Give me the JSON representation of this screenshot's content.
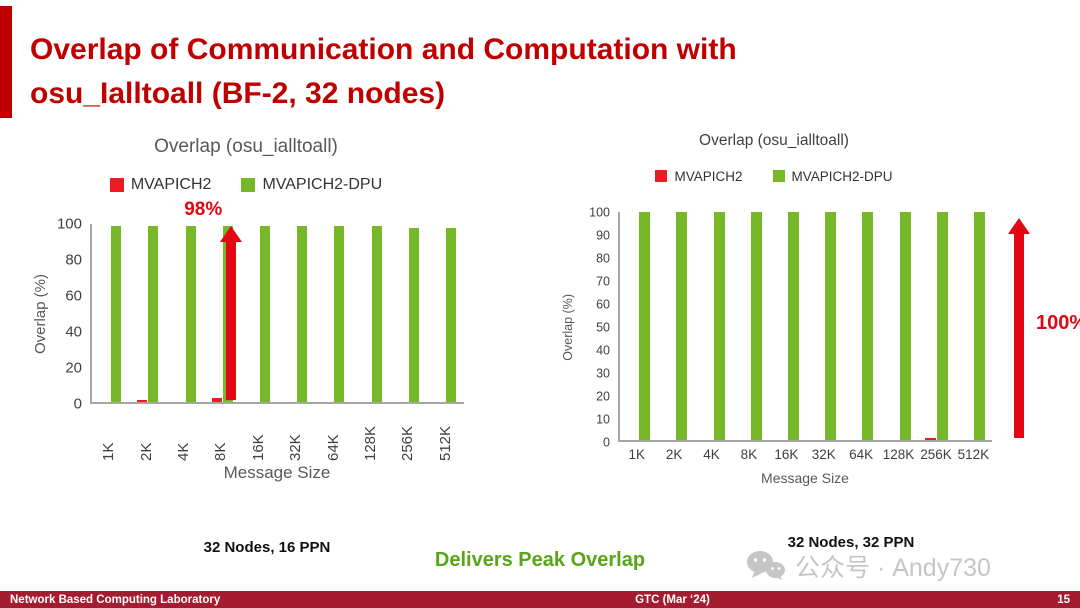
{
  "slide": {
    "title_line1": "Overlap of Communication and Computation with",
    "title_line2": "osu_Ialltoall (BF-2, 32 nodes)",
    "center_note": "Delivers Peak Overlap",
    "watermark": "公众号 · Andy730"
  },
  "footer": {
    "left": "Network Based Computing Laboratory",
    "center": "GTC (Mar ‘24)",
    "page": "15"
  },
  "colors": {
    "title_red": "#C00000",
    "footer_red": "#A51C30",
    "bar_green": "#76B82A",
    "bar_red": "#ED1C24",
    "arrow_red": "#E30613",
    "note_green": "#58A618",
    "watermark_gray": "#C6C6C6"
  },
  "chart_data": [
    {
      "type": "bar",
      "title": "Overlap (osu_ialltoall)",
      "categories": [
        "1K",
        "2K",
        "4K",
        "8K",
        "16K",
        "32K",
        "64K",
        "128K",
        "256K",
        "512K"
      ],
      "series": [
        {
          "name": "MVAPICH2",
          "color_key": "bar_red",
          "values": [
            0,
            1,
            0,
            2,
            0,
            0,
            0,
            0,
            0,
            0
          ]
        },
        {
          "name": "MVAPICH2-DPU",
          "color_key": "bar_green",
          "values": [
            99,
            99,
            99,
            99,
            99,
            99,
            99,
            99,
            98,
            98
          ]
        }
      ],
      "xlabel": "Message Size",
      "ylabel": "Overlap (%)",
      "ylim": [
        0,
        100
      ],
      "ytick_step": 20,
      "legend_position": "top",
      "grid": false,
      "x_labels_rotated": true,
      "annotation": "98%",
      "caption": "32 Nodes, 16 PPN"
    },
    {
      "type": "bar",
      "title": "Overlap (osu_ialltoall)",
      "categories": [
        "1K",
        "2K",
        "4K",
        "8K",
        "16K",
        "32K",
        "64K",
        "128K",
        "256K",
        "512K"
      ],
      "series": [
        {
          "name": "MVAPICH2",
          "color_key": "bar_red",
          "values": [
            0,
            0,
            0,
            0,
            0,
            0,
            0,
            0,
            1,
            0
          ]
        },
        {
          "name": "MVAPICH2-DPU",
          "color_key": "bar_green",
          "values": [
            100,
            100,
            100,
            100,
            100,
            100,
            100,
            100,
            100,
            100
          ]
        }
      ],
      "xlabel": "Message Size",
      "ylabel": "Overlap (%)",
      "ylim": [
        0,
        100
      ],
      "ytick_step": 10,
      "legend_position": "top",
      "grid": false,
      "x_labels_rotated": false,
      "annotation": "100%",
      "caption": "32 Nodes, 32 PPN"
    }
  ]
}
